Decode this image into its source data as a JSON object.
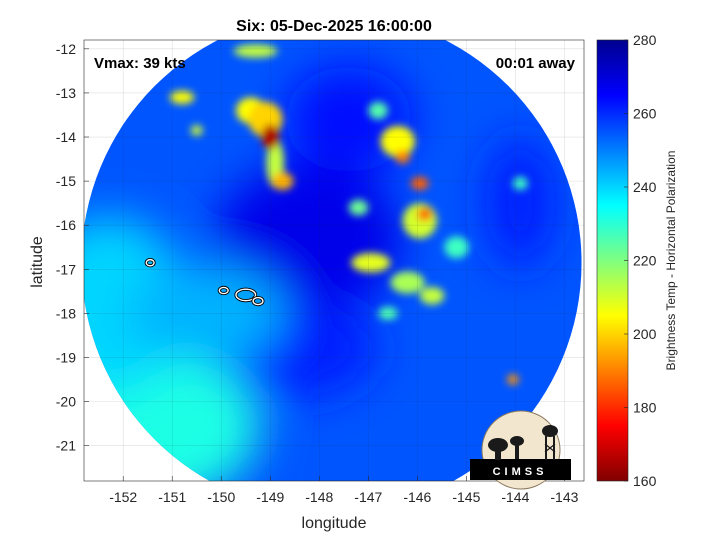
{
  "chart_data": {
    "type": "heatmap",
    "title": "Six: 05-Dec-2025 16:00:00",
    "xlabel": "longitude",
    "ylabel": "latitude",
    "xlim": [
      -152.8,
      -142.6
    ],
    "ylim": [
      -21.8,
      -11.8
    ],
    "xticks": [
      -152,
      -151,
      -150,
      -149,
      -148,
      -147,
      -146,
      -145,
      -144,
      -143
    ],
    "yticks": [
      -12,
      -13,
      -14,
      -15,
      -16,
      -17,
      -18,
      -19,
      -20,
      -21
    ],
    "grid": true,
    "annotations": {
      "vmax": "Vmax: 39 kts",
      "away": "00:01 away"
    },
    "colorbar": {
      "label": "Brightness Temp - Horizontal Polarization",
      "range": [
        160,
        280
      ],
      "ticks": [
        160,
        180,
        200,
        220,
        240,
        260,
        280
      ],
      "colormap": "jet"
    },
    "swath_center": [
      -147.75,
      -16.85
    ],
    "background_temp": 255,
    "warm_regions": [
      {
        "lon": -148.2,
        "lat": -16.3,
        "rx": 1.9,
        "ry": 1.7,
        "temp": 268
      },
      {
        "lon": -147.4,
        "lat": -13.6,
        "rx": 1.3,
        "ry": 1.2,
        "temp": 264
      },
      {
        "lon": -148.6,
        "lat": -18.8,
        "rx": 1.8,
        "ry": 1.1,
        "temp": 262
      },
      {
        "lon": -143.9,
        "lat": -15.5,
        "rx": 0.7,
        "ry": 1.5,
        "temp": 262
      }
    ],
    "cool_regions": [
      {
        "lon": -151.8,
        "lat": -20.6,
        "rx": 2.6,
        "ry": 1.8,
        "temp": 232
      },
      {
        "lon": -152.3,
        "lat": -17.8,
        "rx": 1.6,
        "ry": 2.0,
        "temp": 240
      },
      {
        "lon": -150.3,
        "lat": -18.0,
        "rx": 1.6,
        "ry": 1.1,
        "temp": 244
      }
    ],
    "cloud_features": [
      {
        "lon": -149.0,
        "lat": -14.0,
        "rx": 0.18,
        "ry": 0.28,
        "temp": 166
      },
      {
        "lon": -149.1,
        "lat": -13.6,
        "rx": 0.35,
        "ry": 0.4,
        "temp": 200
      },
      {
        "lon": -148.9,
        "lat": -14.6,
        "rx": 0.18,
        "ry": 0.55,
        "temp": 212
      },
      {
        "lon": -148.75,
        "lat": -15.0,
        "rx": 0.22,
        "ry": 0.2,
        "temp": 196
      },
      {
        "lon": -149.4,
        "lat": -13.4,
        "rx": 0.3,
        "ry": 0.3,
        "temp": 205
      },
      {
        "lon": -149.3,
        "lat": -12.05,
        "rx": 0.45,
        "ry": 0.15,
        "temp": 212
      },
      {
        "lon": -150.8,
        "lat": -13.1,
        "rx": 0.25,
        "ry": 0.15,
        "temp": 205
      },
      {
        "lon": -150.5,
        "lat": -13.85,
        "rx": 0.12,
        "ry": 0.12,
        "temp": 210
      },
      {
        "lon": -146.4,
        "lat": -14.1,
        "rx": 0.35,
        "ry": 0.35,
        "temp": 205
      },
      {
        "lon": -146.3,
        "lat": -14.45,
        "rx": 0.15,
        "ry": 0.15,
        "temp": 190
      },
      {
        "lon": -146.8,
        "lat": -13.4,
        "rx": 0.2,
        "ry": 0.2,
        "temp": 225
      },
      {
        "lon": -145.95,
        "lat": -15.05,
        "rx": 0.18,
        "ry": 0.15,
        "temp": 186
      },
      {
        "lon": -145.85,
        "lat": -15.75,
        "rx": 0.15,
        "ry": 0.15,
        "temp": 186
      },
      {
        "lon": -145.95,
        "lat": -15.9,
        "rx": 0.35,
        "ry": 0.4,
        "temp": 210
      },
      {
        "lon": -146.95,
        "lat": -16.85,
        "rx": 0.4,
        "ry": 0.22,
        "temp": 208
      },
      {
        "lon": -146.2,
        "lat": -17.3,
        "rx": 0.35,
        "ry": 0.25,
        "temp": 215
      },
      {
        "lon": -145.7,
        "lat": -17.6,
        "rx": 0.25,
        "ry": 0.2,
        "temp": 212
      },
      {
        "lon": -147.2,
        "lat": -15.6,
        "rx": 0.2,
        "ry": 0.18,
        "temp": 222
      },
      {
        "lon": -145.2,
        "lat": -16.5,
        "rx": 0.25,
        "ry": 0.25,
        "temp": 228
      },
      {
        "lon": -144.05,
        "lat": -19.5,
        "rx": 0.12,
        "ry": 0.12,
        "temp": 192
      },
      {
        "lon": -143.9,
        "lat": -15.05,
        "rx": 0.15,
        "ry": 0.15,
        "temp": 228
      },
      {
        "lon": -146.6,
        "lat": -18.0,
        "rx": 0.2,
        "ry": 0.15,
        "temp": 226
      }
    ],
    "contour_features": [
      {
        "lon": -151.45,
        "lat": -16.85,
        "rx": 0.08,
        "ry": 0.07
      },
      {
        "lon": -149.95,
        "lat": -17.48,
        "rx": 0.09,
        "ry": 0.07
      },
      {
        "lon": -149.5,
        "lat": -17.58,
        "rx": 0.2,
        "ry": 0.13
      },
      {
        "lon": -149.25,
        "lat": -17.72,
        "rx": 0.1,
        "ry": 0.08
      }
    ]
  },
  "logo": {
    "text": "CIMSS"
  }
}
